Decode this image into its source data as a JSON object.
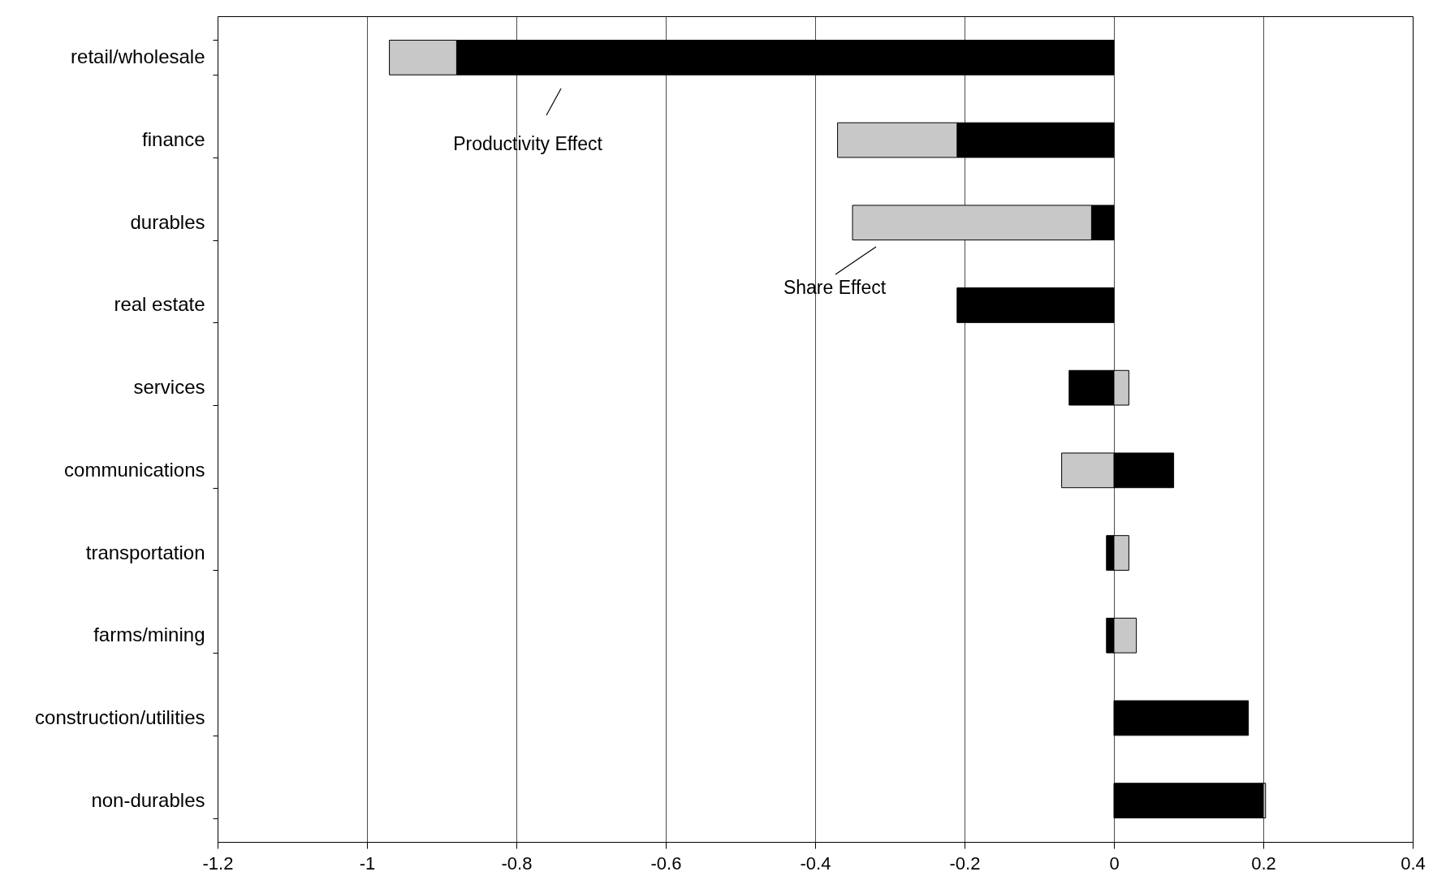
{
  "chart_data": {
    "type": "bar",
    "orientation": "horizontal",
    "stacked": true,
    "categories": [
      "retail/wholesale",
      "finance",
      "durables",
      "real estate",
      "services",
      "communications",
      "transportation",
      "farms/mining",
      "construction/utilities",
      "non-durables"
    ],
    "series": [
      {
        "name": "Productivity Effect",
        "color": "#000000",
        "values": [
          -0.88,
          -0.21,
          -0.03,
          -0.21,
          -0.06,
          0.08,
          -0.01,
          -0.01,
          0.18,
          0.2
        ]
      },
      {
        "name": "Share Effect",
        "color": "#c8c8c8",
        "values": [
          -0.09,
          -0.16,
          -0.32,
          null,
          0.02,
          -0.07,
          0.02,
          0.03,
          null,
          0.003
        ]
      }
    ],
    "xlim": [
      -1.2,
      0.4
    ],
    "xticks": [
      -1.2,
      -1,
      -0.8,
      -0.6,
      -0.4,
      -0.2,
      0,
      0.2,
      0.4
    ],
    "grid": "x",
    "legend": "top left"
  }
}
